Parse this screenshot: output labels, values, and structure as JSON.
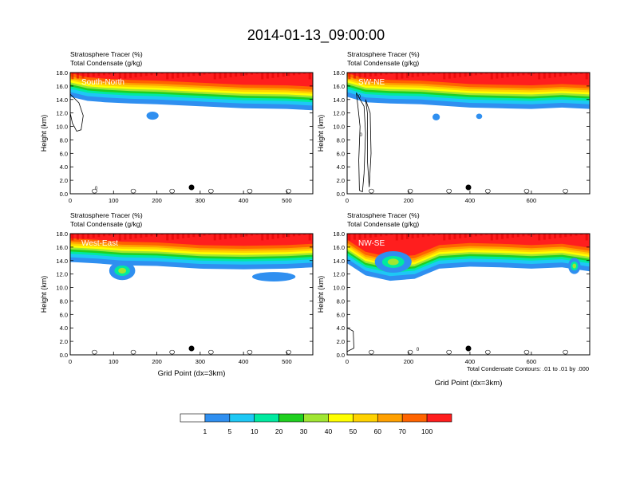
{
  "title": "2014-01-13_09:00:00",
  "footnote": "Total Condensate Contours: .01 to .01 by .000",
  "colorbar": {
    "colors": [
      "#ffffff",
      "#2f8ff0",
      "#1ec8f5",
      "#00eaa0",
      "#20d020",
      "#a0e632",
      "#ffff00",
      "#ffd200",
      "#ffa000",
      "#ff6400",
      "#ff1e1e"
    ],
    "labels": [
      "1",
      "5",
      "10",
      "20",
      "30",
      "40",
      "50",
      "60",
      "70",
      "100"
    ]
  },
  "chart_data": [
    {
      "type": "contour",
      "name": "South-North",
      "titles": [
        "Stratosphere Tracer   (%)",
        "Total Condensate   (g/kg)"
      ],
      "ylabel": "Height (km)",
      "xlabel": "",
      "xlim": [
        0,
        560
      ],
      "ylim": [
        0,
        18
      ],
      "xticks": [
        0,
        100,
        200,
        300,
        400,
        500
      ],
      "yticks": [
        "0.0",
        "2.0",
        "4.0",
        "6.0",
        "8.0",
        "10.0",
        "12.0",
        "14.0",
        "16.0",
        "18.0"
      ],
      "marker_x": 280,
      "contour_labels": [
        {
          "text": "0",
          "x": 60,
          "y": 0.6
        }
      ],
      "tropopause": [
        [
          0,
          15.6
        ],
        [
          40,
          15.0
        ],
        [
          80,
          14.8
        ],
        [
          140,
          14.6
        ],
        [
          200,
          14.5
        ],
        [
          300,
          14.2
        ],
        [
          400,
          13.9
        ],
        [
          500,
          13.8
        ],
        [
          560,
          13.6
        ]
      ],
      "blobs": [
        [
          190,
          11.6,
          14,
          0.6
        ]
      ],
      "cloud_outlines": [
        [
          [
            0,
            14.8
          ],
          [
            20,
            13.5
          ],
          [
            30,
            11.6
          ],
          [
            25,
            9.5
          ],
          [
            15,
            9.3
          ],
          [
            5,
            10.5
          ],
          [
            0,
            12
          ]
        ]
      ]
    },
    {
      "type": "contour",
      "name": "SW-NE",
      "titles": [
        "Stratosphere Tracer   (%)",
        "Total Condensate   (g/kg)"
      ],
      "ylabel": "Height (km)",
      "xlabel": "",
      "xlim": [
        0,
        790
      ],
      "ylim": [
        0,
        18
      ],
      "xticks": [
        0,
        200,
        400,
        600
      ],
      "yticks": [
        "0.0",
        "2.0",
        "4.0",
        "6.0",
        "8.0",
        "10.0",
        "12.0",
        "14.0",
        "16.0",
        "18.0"
      ],
      "marker_x": 395,
      "contour_labels": [
        {
          "text": "0",
          "x": 40,
          "y": 14.2
        },
        {
          "text": "0",
          "x": 45,
          "y": 8.5
        }
      ],
      "tropopause": [
        [
          0,
          15.6
        ],
        [
          60,
          14.8
        ],
        [
          140,
          14.6
        ],
        [
          240,
          14.5
        ],
        [
          400,
          14.0
        ],
        [
          500,
          13.9
        ],
        [
          600,
          13.8
        ],
        [
          700,
          14.0
        ],
        [
          790,
          13.8
        ]
      ],
      "blobs": [
        [
          290,
          11.4,
          12,
          0.5
        ],
        [
          430,
          11.5,
          10,
          0.4
        ]
      ],
      "cloud_outlines": [
        [
          [
            30,
            15
          ],
          [
            55,
            13
          ],
          [
            60,
            9
          ],
          [
            55,
            3
          ],
          [
            50,
            0.3
          ],
          [
            40,
            0.5
          ],
          [
            38,
            5
          ],
          [
            42,
            10
          ],
          [
            35,
            13
          ]
        ],
        [
          [
            60,
            14
          ],
          [
            75,
            12
          ],
          [
            78,
            6
          ],
          [
            72,
            1
          ],
          [
            66,
            5
          ],
          [
            66,
            12
          ]
        ]
      ]
    },
    {
      "type": "contour",
      "name": "West-East",
      "titles": [
        "Stratosphere Tracer   (%)",
        "Total Condensate   (g/kg)"
      ],
      "ylabel": "Height (km)",
      "xlabel": "Grid Point (dx=3km)",
      "xlim": [
        0,
        560
      ],
      "ylim": [
        0,
        18
      ],
      "xticks": [
        0,
        100,
        200,
        300,
        400,
        500
      ],
      "yticks": [
        "0.0",
        "2.0",
        "4.0",
        "6.0",
        "8.0",
        "10.0",
        "12.0",
        "14.0",
        "16.0",
        "18.0"
      ],
      "marker_x": 280,
      "contour_labels": [],
      "tropopause": [
        [
          0,
          15.0
        ],
        [
          60,
          14.8
        ],
        [
          120,
          14.5
        ],
        [
          200,
          14.4
        ],
        [
          300,
          14.0
        ],
        [
          400,
          13.9
        ],
        [
          500,
          14.0
        ],
        [
          560,
          14.2
        ]
      ],
      "blobs": [
        [
          120,
          12.5,
          30,
          1.4
        ],
        [
          470,
          11.6,
          50,
          0.7
        ]
      ],
      "cloud_outlines": []
    },
    {
      "type": "contour",
      "name": "NW-SE",
      "titles": [
        "Stratosphere Tracer   (%)",
        "Total Condensate   (g/kg)"
      ],
      "ylabel": "Height (km)",
      "xlabel": "Grid Point (dx=3km)",
      "xlim": [
        0,
        790
      ],
      "ylim": [
        0,
        18
      ],
      "xticks": [
        0,
        200,
        400,
        600
      ],
      "yticks": [
        "0.0",
        "2.0",
        "4.0",
        "6.0",
        "8.0",
        "10.0",
        "12.0",
        "14.0",
        "16.0",
        "18.0"
      ],
      "marker_x": 395,
      "contour_labels": [
        {
          "text": "0",
          "x": 230,
          "y": 0.6
        }
      ],
      "tropopause": [
        [
          0,
          14.8
        ],
        [
          60,
          13.0
        ],
        [
          140,
          12.2
        ],
        [
          220,
          12.5
        ],
        [
          300,
          14.0
        ],
        [
          400,
          14.3
        ],
        [
          500,
          14.2
        ],
        [
          600,
          14.0
        ],
        [
          700,
          14.2
        ],
        [
          790,
          13.6
        ]
      ],
      "blobs": [
        [
          150,
          13.8,
          60,
          1.6
        ],
        [
          740,
          13.2,
          20,
          1.2
        ]
      ],
      "cloud_outlines": [
        [
          [
            0,
            4
          ],
          [
            20,
            3.5
          ],
          [
            22,
            1
          ],
          [
            0,
            0.5
          ]
        ]
      ]
    }
  ]
}
